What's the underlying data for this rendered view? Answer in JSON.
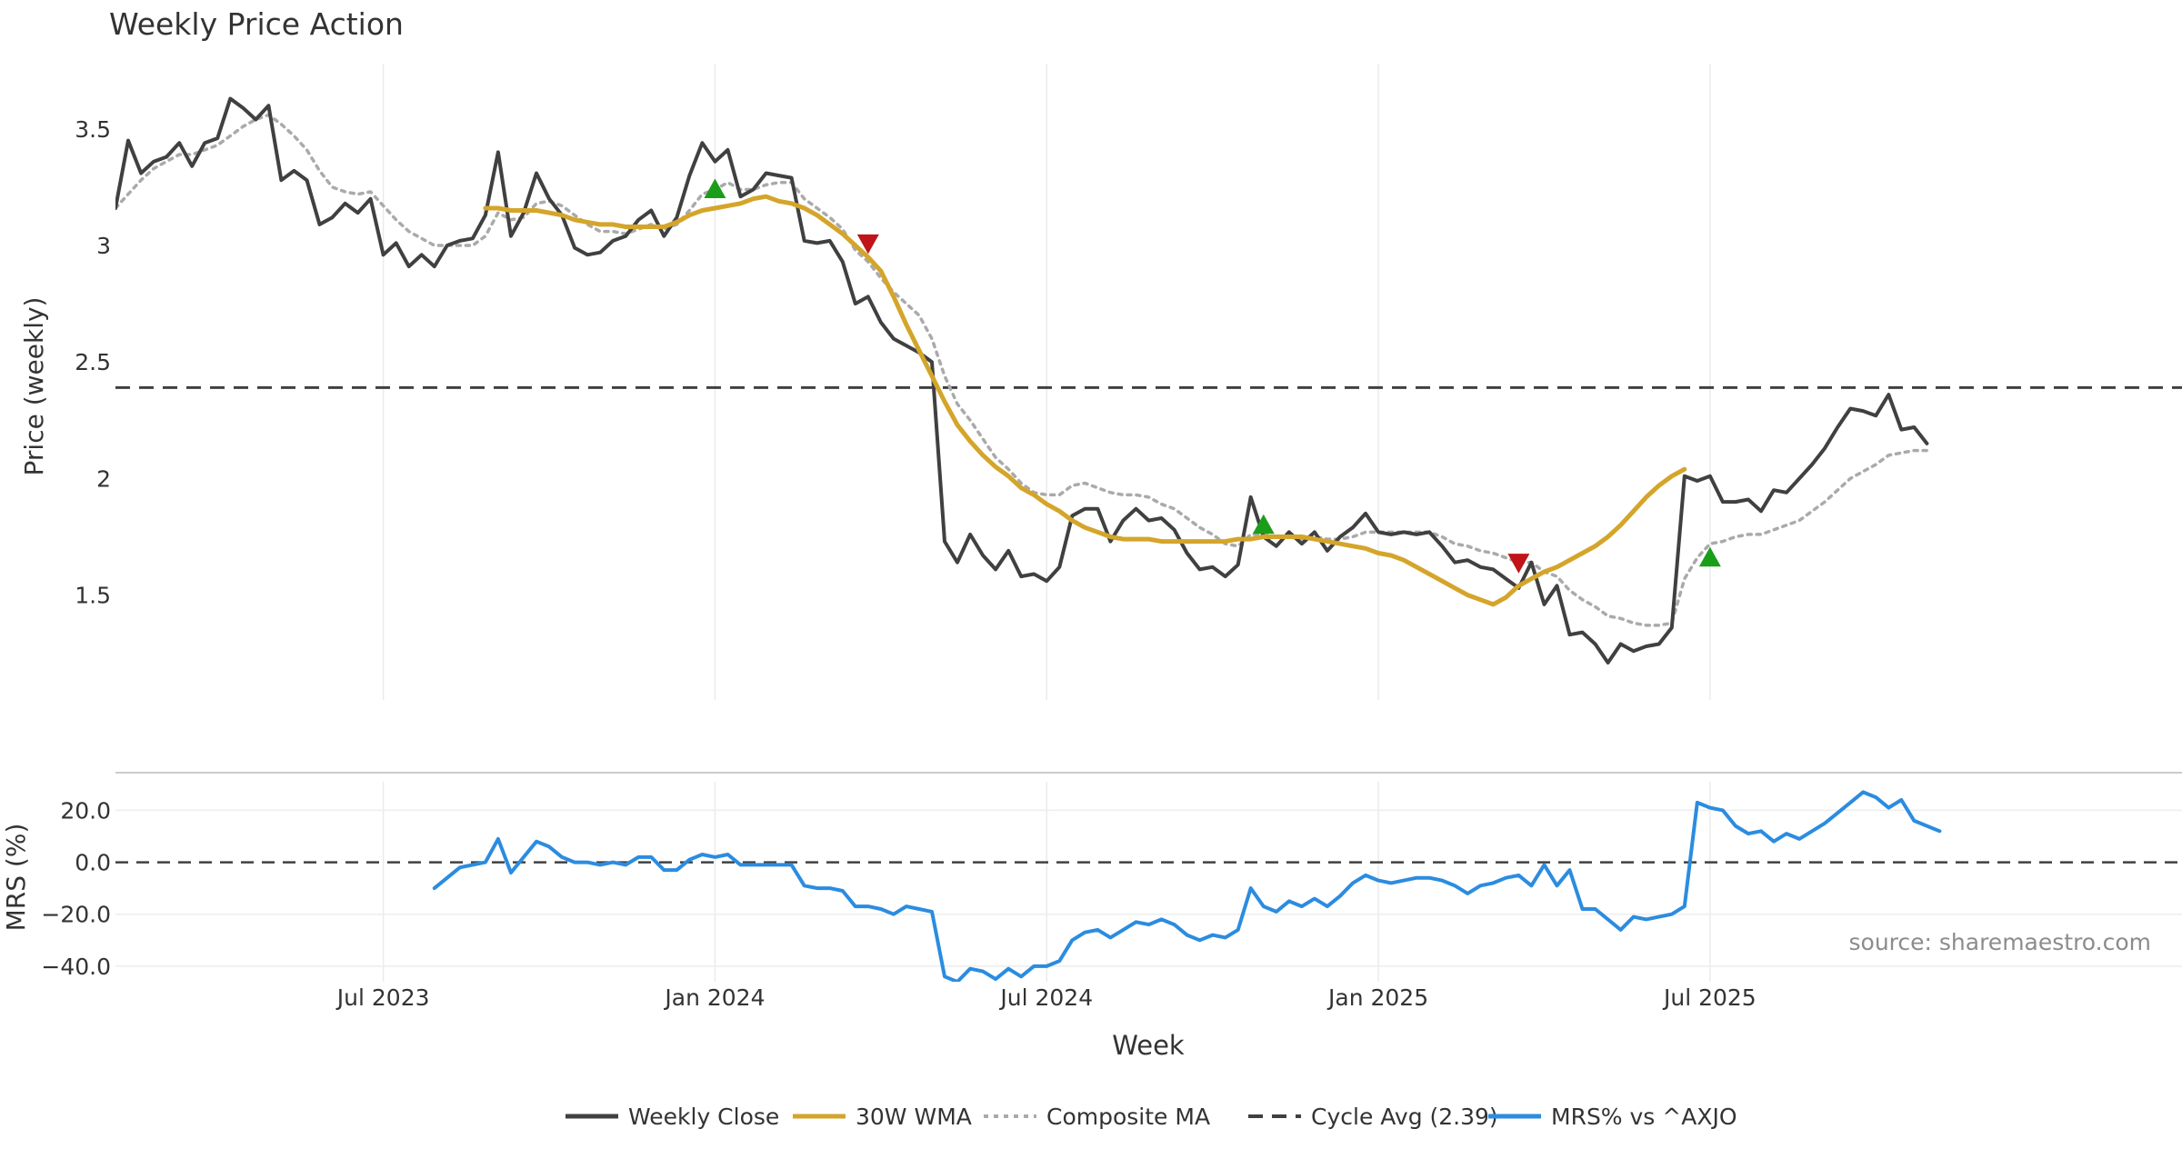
{
  "chart_data": [
    {
      "type": "line",
      "title": "Weekly Price Action",
      "xlabel": "",
      "ylabel": "Price (weekly)",
      "ylim": [
        1.05,
        3.78
      ],
      "yticks": [
        1.5,
        2,
        2.5,
        3,
        3.5
      ],
      "ytick_labels": [
        "1.5",
        "2",
        "2.5",
        "3",
        "3.5"
      ],
      "grid": true,
      "x_week_start": 0,
      "x_week_end": 162,
      "series": [
        {
          "name": "Weekly Close",
          "color": "#404040",
          "style": "solid",
          "start_week": 0,
          "values": [
            3.16,
            3.45,
            3.31,
            3.36,
            3.38,
            3.44,
            3.34,
            3.44,
            3.46,
            3.63,
            3.59,
            3.54,
            3.6,
            3.28,
            3.32,
            3.28,
            3.09,
            3.12,
            3.18,
            3.14,
            3.2,
            2.96,
            3.01,
            2.91,
            2.96,
            2.91,
            3.0,
            3.02,
            3.03,
            3.13,
            3.4,
            3.04,
            3.14,
            3.31,
            3.2,
            3.13,
            2.99,
            2.96,
            2.97,
            3.02,
            3.04,
            3.11,
            3.15,
            3.04,
            3.12,
            3.3,
            3.44,
            3.36,
            3.41,
            3.21,
            3.24,
            3.31,
            3.3,
            3.29,
            3.02,
            3.01,
            3.02,
            2.93,
            2.75,
            2.78,
            2.67,
            2.6,
            2.57,
            2.54,
            2.5,
            1.73,
            1.64,
            1.76,
            1.67,
            1.61,
            1.69,
            1.58,
            1.59,
            1.56,
            1.62,
            1.84,
            1.87,
            1.87,
            1.73,
            1.82,
            1.87,
            1.82,
            1.83,
            1.78,
            1.68,
            1.61,
            1.62,
            1.58,
            1.63,
            1.92,
            1.75,
            1.71,
            1.77,
            1.72,
            1.77,
            1.69,
            1.75,
            1.79,
            1.85,
            1.77,
            1.76,
            1.77,
            1.76,
            1.77,
            1.71,
            1.64,
            1.65,
            1.62,
            1.61,
            1.57,
            1.53,
            1.64,
            1.46,
            1.54,
            1.33,
            1.34,
            1.29,
            1.21,
            1.29,
            1.26,
            1.28,
            1.29,
            1.36,
            2.01,
            1.99,
            2.01,
            1.9,
            1.9,
            1.91,
            1.86,
            1.95,
            1.94,
            2.0,
            2.06,
            2.13,
            2.22,
            2.3,
            2.29,
            2.27,
            2.36,
            2.21,
            2.22,
            2.15
          ]
        },
        {
          "name": "30W WMA",
          "color": "#D4A52A",
          "style": "solid",
          "start_week": 29,
          "values": [
            3.16,
            3.16,
            3.15,
            3.15,
            3.15,
            3.14,
            3.13,
            3.11,
            3.1,
            3.09,
            3.09,
            3.08,
            3.08,
            3.08,
            3.08,
            3.1,
            3.13,
            3.15,
            3.16,
            3.17,
            3.18,
            3.2,
            3.21,
            3.19,
            3.18,
            3.16,
            3.13,
            3.09,
            3.05,
            3.0,
            2.95,
            2.89,
            2.78,
            2.66,
            2.55,
            2.44,
            2.33,
            2.23,
            2.16,
            2.1,
            2.05,
            2.01,
            1.96,
            1.93,
            1.89,
            1.86,
            1.82,
            1.79,
            1.77,
            1.75,
            1.74,
            1.74,
            1.74,
            1.73,
            1.73,
            1.73,
            1.73,
            1.73,
            1.73,
            1.74,
            1.74,
            1.75,
            1.75,
            1.75,
            1.75,
            1.74,
            1.73,
            1.72,
            1.71,
            1.7,
            1.68,
            1.67,
            1.65,
            1.62,
            1.59,
            1.56,
            1.53,
            1.5,
            1.48,
            1.46,
            1.49,
            1.54,
            1.57,
            1.6,
            1.62,
            1.65,
            1.68,
            1.71,
            1.75,
            1.8,
            1.86,
            1.92,
            1.97,
            2.01,
            2.04
          ]
        },
        {
          "name": "Composite MA",
          "color": "#aaaaaa",
          "style": "dotted",
          "start_week": 0,
          "values": [
            3.16,
            3.22,
            3.28,
            3.33,
            3.36,
            3.39,
            3.39,
            3.41,
            3.43,
            3.47,
            3.51,
            3.54,
            3.56,
            3.52,
            3.47,
            3.41,
            3.32,
            3.25,
            3.23,
            3.22,
            3.23,
            3.17,
            3.11,
            3.06,
            3.03,
            3.0,
            3.0,
            3.0,
            3.0,
            3.04,
            3.14,
            3.11,
            3.12,
            3.18,
            3.19,
            3.17,
            3.13,
            3.09,
            3.06,
            3.06,
            3.05,
            3.07,
            3.09,
            3.07,
            3.09,
            3.15,
            3.22,
            3.24,
            3.27,
            3.24,
            3.24,
            3.26,
            3.27,
            3.27,
            3.2,
            3.16,
            3.12,
            3.07,
            2.98,
            2.93,
            2.86,
            2.8,
            2.75,
            2.7,
            2.6,
            2.44,
            2.32,
            2.25,
            2.17,
            2.09,
            2.04,
            1.98,
            1.94,
            1.93,
            1.93,
            1.97,
            1.98,
            1.96,
            1.94,
            1.93,
            1.93,
            1.92,
            1.89,
            1.87,
            1.83,
            1.79,
            1.76,
            1.72,
            1.71,
            1.76,
            1.76,
            1.75,
            1.75,
            1.74,
            1.75,
            1.74,
            1.74,
            1.75,
            1.77,
            1.77,
            1.77,
            1.77,
            1.77,
            1.77,
            1.75,
            1.72,
            1.71,
            1.69,
            1.68,
            1.66,
            1.64,
            1.64,
            1.6,
            1.58,
            1.52,
            1.48,
            1.45,
            1.41,
            1.4,
            1.38,
            1.37,
            1.37,
            1.38,
            1.57,
            1.66,
            1.72,
            1.73,
            1.75,
            1.76,
            1.76,
            1.78,
            1.8,
            1.82,
            1.86,
            1.9,
            1.95,
            2.0,
            2.03,
            2.06,
            2.1,
            2.11,
            2.12,
            2.12
          ]
        },
        {
          "name": "Cycle Avg (2.39)",
          "color": "#404040",
          "style": "dashed",
          "constant": 2.39
        }
      ],
      "annotations": [
        {
          "type": "buy-signal",
          "week": 47,
          "value": 3.24,
          "color": "#1a9e1a"
        },
        {
          "type": "sell-signal",
          "week": 59,
          "value": 3.01,
          "color": "#c0141a"
        },
        {
          "type": "buy-signal",
          "week": 90,
          "value": 1.8,
          "color": "#1a9e1a"
        },
        {
          "type": "sell-signal",
          "week": 110,
          "value": 1.64,
          "color": "#c0141a"
        },
        {
          "type": "buy-signal",
          "week": 125,
          "value": 1.66,
          "color": "#1a9e1a"
        }
      ]
    },
    {
      "type": "line",
      "title": "",
      "xlabel": "Week",
      "ylabel": "MRS (%)",
      "ylim": [
        -46,
        31
      ],
      "yticks": [
        20,
        0,
        -20,
        -40
      ],
      "ytick_labels": [
        "20.0",
        "0.0",
        "−20.0",
        "−40.0"
      ],
      "reference_line": 0,
      "x_week_start": 0,
      "x_week_end": 162,
      "xticks_week": [
        21,
        47,
        73,
        99,
        125
      ],
      "xtick_labels": [
        "Jul 2023",
        "Jan 2024",
        "Jul 2024",
        "Jan 2025",
        "Jul 2025"
      ],
      "series": [
        {
          "name": "MRS% vs ^AXJO",
          "color": "#2b8ce0",
          "style": "solid",
          "start_week": 25,
          "values": [
            -10,
            -6,
            -2,
            -1,
            0,
            9,
            -4,
            2,
            8,
            6,
            2,
            0,
            0,
            -1,
            0,
            -1,
            2,
            2,
            -3,
            -3,
            1,
            3,
            2,
            3,
            -1,
            -1,
            -1,
            -1,
            -1,
            -9,
            -10,
            -10,
            -11,
            -17,
            -17,
            -18,
            -20,
            -17,
            -18,
            -19,
            -44,
            -46,
            -41,
            -42,
            -45,
            -41,
            -44,
            -40,
            -40,
            -38,
            -30,
            -27,
            -26,
            -29,
            -26,
            -23,
            -24,
            -22,
            -24,
            -28,
            -30,
            -28,
            -29,
            -26,
            -10,
            -17,
            -19,
            -15,
            -17,
            -14,
            -17,
            -13,
            -8,
            -5,
            -7,
            -8,
            -7,
            -6,
            -6,
            -7,
            -9,
            -12,
            -9,
            -8,
            -6,
            -5,
            -9,
            -1,
            -9,
            -3,
            -18,
            -18,
            -22,
            -26,
            -21,
            -22,
            -21,
            -20,
            -17,
            23,
            21,
            20,
            14,
            11,
            12,
            8,
            11,
            9,
            12,
            15,
            19,
            23,
            27,
            25,
            21,
            24,
            16,
            14,
            12
          ]
        }
      ],
      "annotation_text": "source: sharemaestro.com"
    }
  ],
  "legend": {
    "position": "bottom-center",
    "items": [
      {
        "label": "Weekly Close",
        "color": "#404040",
        "style": "solid"
      },
      {
        "label": "30W WMA",
        "color": "#D4A52A",
        "style": "solid"
      },
      {
        "label": "Composite MA",
        "color": "#aaaaaa",
        "style": "dotted"
      },
      {
        "label": "Cycle Avg (2.39)",
        "color": "#404040",
        "style": "dashed"
      },
      {
        "label": "MRS% vs ^AXJO",
        "color": "#2b8ce0",
        "style": "solid"
      }
    ]
  }
}
